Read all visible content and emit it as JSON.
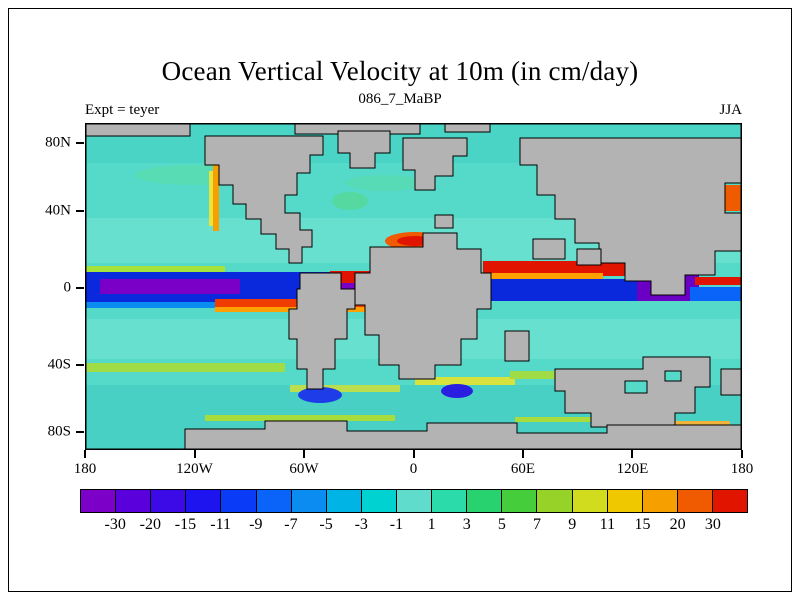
{
  "chart_data": {
    "type": "heatmap",
    "title": "Ocean Vertical Velocity at 10m (in cm/day)",
    "subtitle": "086_7_MaBP",
    "annotations": {
      "top_left": "Expt = teyer",
      "top_right": "JJA"
    },
    "units": "cm/day",
    "description": "Filled-contour global latitude-longitude map of ocean vertical velocity at 10 m depth for paleogeography 086_7_MaBP, season JJA; gray blocky regions are land, teal/cyan is weak upwelling, dark blue/purple bands along the equator are strong negative values, red/orange coastal and equatorial streaks are strong positive values.",
    "y_axis": {
      "range_deg": [
        -90,
        90
      ],
      "ticks": [
        {
          "label": "80N",
          "pos": 6.1
        },
        {
          "label": "40N",
          "pos": 26.9
        },
        {
          "label": "0",
          "pos": 50.4
        },
        {
          "label": "40S",
          "pos": 74.0
        },
        {
          "label": "80S",
          "pos": 94.5
        }
      ]
    },
    "x_axis": {
      "range_deg": [
        -180,
        180
      ],
      "ticks": [
        {
          "label": "180",
          "pos": 0
        },
        {
          "label": "120W",
          "pos": 16.67
        },
        {
          "label": "60W",
          "pos": 33.33
        },
        {
          "label": "0",
          "pos": 50
        },
        {
          "label": "60E",
          "pos": 66.67
        },
        {
          "label": "120E",
          "pos": 83.33
        },
        {
          "label": "180",
          "pos": 100
        }
      ]
    },
    "colorbar": {
      "levels": [
        "-30",
        "-20",
        "-15",
        "-11",
        "-9",
        "-7",
        "-5",
        "-3",
        "-1",
        "1",
        "3",
        "5",
        "7",
        "9",
        "11",
        "15",
        "20",
        "30"
      ],
      "colors": [
        "#7d00c8",
        "#5a00dc",
        "#3c0ae6",
        "#1e14f0",
        "#0a3cf8",
        "#0a64fa",
        "#0a8cf0",
        "#00b4e6",
        "#00d2d2",
        "#5fdccb",
        "#2bdcaa",
        "#28d26e",
        "#46cd3c",
        "#96d228",
        "#d2dc1e",
        "#f0c800",
        "#f5a000",
        "#f05a00",
        "#e11400"
      ]
    },
    "map": {
      "land_color": "#b3b3b3",
      "ocean_base_color": "#55dac9",
      "coastline_color": "#000000"
    }
  }
}
